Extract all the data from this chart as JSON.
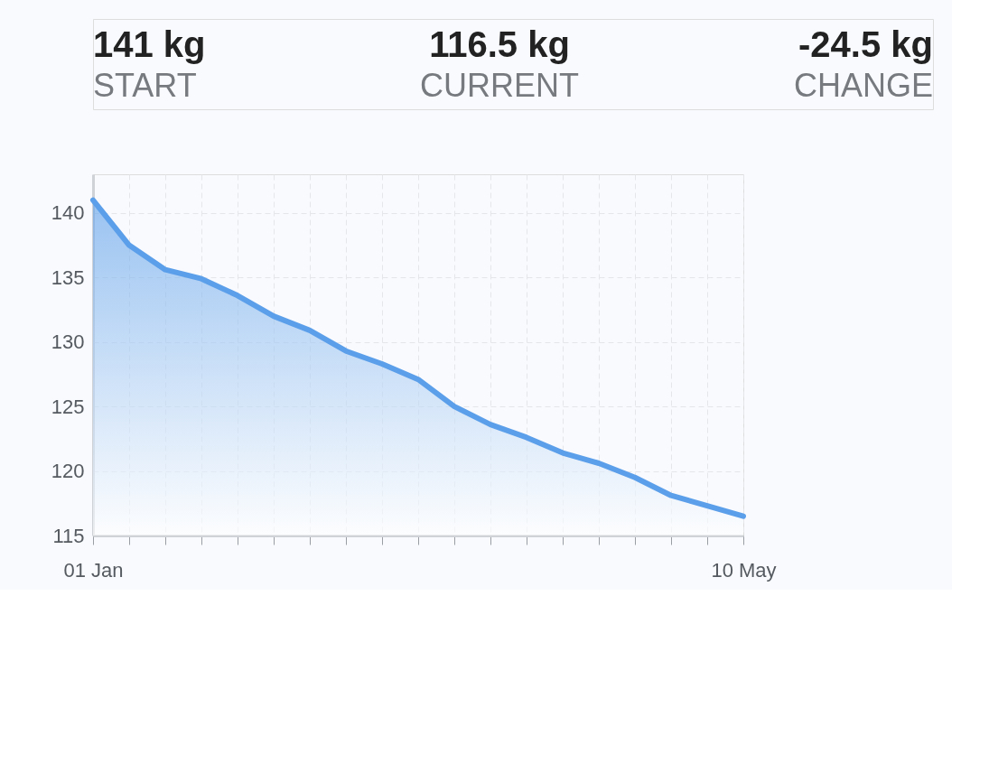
{
  "chart_data": {
    "type": "area",
    "annotations": [
      "141 kg",
      "START",
      "116.5 kg",
      "CURRENT",
      "-24.5 kg",
      "CHANGE"
    ],
    "categories": [
      "01 Jan",
      null,
      null,
      null,
      null,
      null,
      null,
      null,
      null,
      null,
      null,
      null,
      null,
      null,
      null,
      null,
      null,
      null,
      "10 May"
    ],
    "series": [
      {
        "color": "#5b9ee9",
        "values": [
          141,
          137.5,
          135.6,
          134.9,
          133.6,
          132.0,
          130.9,
          129.3,
          128.3,
          127.1,
          125.0,
          123.6,
          122.6,
          121.4,
          120.6,
          119.5,
          118.1,
          117.3,
          116.5
        ]
      }
    ],
    "ylim": [
      115,
      143
    ],
    "yticks": [
      115,
      120,
      125,
      130,
      135,
      140
    ],
    "grid": true,
    "legend": false
  }
}
